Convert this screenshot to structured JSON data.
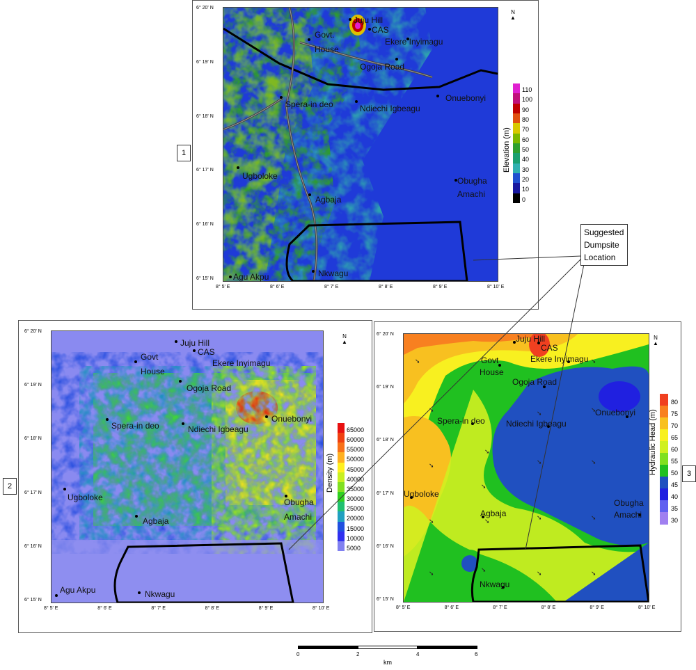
{
  "panels": [
    {
      "id": "1",
      "legend_title": "Elevation (m)",
      "legend_labels": [
        "110",
        "100",
        "90",
        "80",
        "70",
        "60",
        "50",
        "40",
        "30",
        "20",
        "10",
        "0"
      ],
      "legend_colors": [
        "#e020d0",
        "#c0107a",
        "#c00000",
        "#e05010",
        "#d8c800",
        "#7cb800",
        "#2ea030",
        "#1aa070",
        "#30b0b0",
        "#2050d0",
        "#1818a0",
        "#000000"
      ]
    },
    {
      "id": "2",
      "legend_title": "Density (m)",
      "legend_labels": [
        "65000",
        "60000",
        "55000",
        "50000",
        "45000",
        "40000",
        "35000",
        "30000",
        "25000",
        "20000",
        "15000",
        "10000",
        "5000"
      ],
      "legend_colors": [
        "#e81010",
        "#f04010",
        "#f87018",
        "#ffb020",
        "#fff020",
        "#c8f020",
        "#80e020",
        "#30d020",
        "#20c070",
        "#20a0c0",
        "#2050e0",
        "#3030f0",
        "#8080f0"
      ]
    },
    {
      "id": "3",
      "legend_title": "Hydraulic Head (m)",
      "legend_labels": [
        "80",
        "75",
        "70",
        "65",
        "60",
        "55",
        "50",
        "45",
        "40",
        "35",
        "30"
      ],
      "legend_colors": [
        "#f04020",
        "#f88020",
        "#f8c020",
        "#f8f020",
        "#d0f020",
        "#80e020",
        "#20c020",
        "#2050c0",
        "#2020e0",
        "#6060f0",
        "#a080f0"
      ]
    }
  ],
  "lat_labels": [
    "6° 20' N",
    "6° 19' N",
    "6° 18' N",
    "6° 17' N",
    "6° 16' N",
    "6° 15' N"
  ],
  "lon_labels": [
    "8° 5' E",
    "8° 6' E",
    "8° 7' E",
    "8° 8' E",
    "8° 9' E",
    "8° 10' E"
  ],
  "places_map1": [
    "Juju Hill",
    "CAS",
    "Govt.",
    "House",
    "Ekere Inyimagu",
    "Ogoja Road",
    "Spera-in deo",
    "Ndiechi Igbeagu",
    "Onuebonyi",
    "Ugboloke",
    "Agbaja",
    "Obugha",
    "Amachi",
    "Agu Akpu",
    "Nkwagu"
  ],
  "places_map2": [
    "Juju Hill",
    "CAS",
    "Govt",
    "House",
    "Ekere Inyimagu",
    "Ogoja Road",
    "Spera-in deo",
    "Ndiechi Igbeagu",
    "Onuebonyi",
    "Ugboloke",
    "Agbaja",
    "Obugha",
    "Amachi",
    "Agu Akpu",
    "Nkwagu"
  ],
  "places_map3": [
    "Juju Hill",
    "CAS",
    "Govt",
    "House",
    "Ekere Inyimagu",
    "Ogoja Road",
    "Spera-in deo",
    "Ndiechi Igbeagu",
    "Onuebonyi",
    "Ugboloke",
    "Agbaja",
    "Obugha",
    "Amachi",
    "Nkwagu"
  ],
  "callout": {
    "line1": "Suggested",
    "line2": "Dumpsite",
    "line3": "Location"
  },
  "north_symbol": "N",
  "scalebar": {
    "ticks": [
      "0",
      "2",
      "4",
      "6"
    ],
    "unit": "km"
  }
}
